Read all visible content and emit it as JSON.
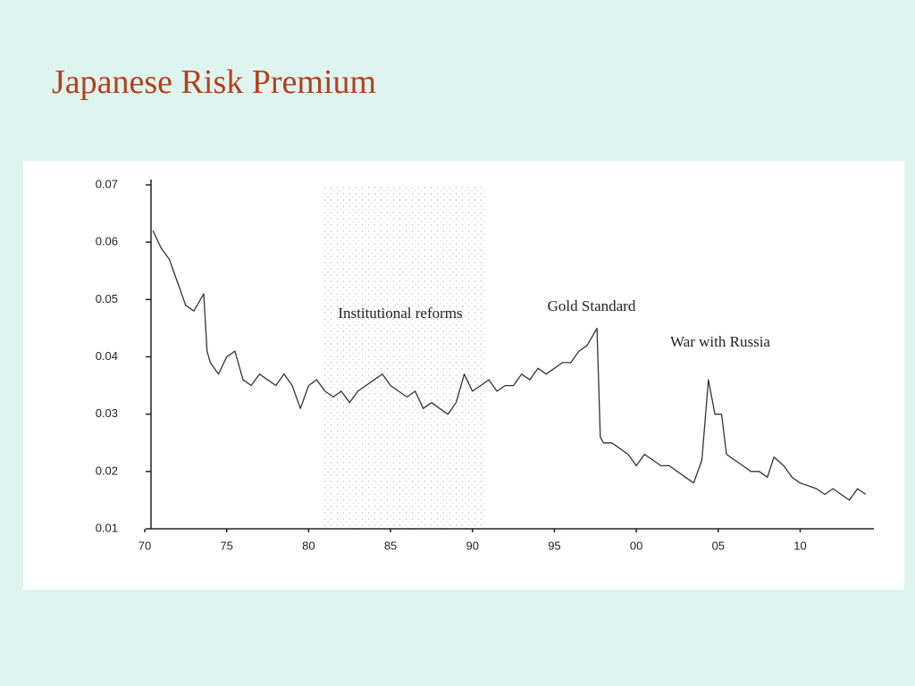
{
  "chart_data": {
    "type": "line",
    "title": "Japanese Risk Premium",
    "x": [
      1870.5,
      1871,
      1871.5,
      1872,
      1872.5,
      1873,
      1873.6,
      1873.8,
      1874,
      1874.5,
      1875,
      1875.5,
      1876,
      1876.5,
      1877,
      1877.5,
      1878,
      1878.5,
      1879,
      1879.5,
      1880,
      1880.5,
      1881,
      1881.5,
      1882,
      1882.5,
      1883,
      1883.5,
      1884,
      1884.5,
      1885,
      1885.5,
      1886,
      1886.5,
      1887,
      1887.5,
      1888,
      1888.5,
      1889,
      1889.5,
      1890,
      1890.5,
      1891,
      1891.5,
      1892,
      1892.5,
      1893,
      1893.5,
      1894,
      1894.5,
      1895,
      1895.5,
      1896,
      1896.5,
      1897,
      1897.6,
      1897.8,
      1898,
      1898.5,
      1899,
      1899.5,
      1900,
      1900.5,
      1901,
      1901.5,
      1902,
      1902.5,
      1903,
      1903.5,
      1904,
      1904.4,
      1904.8,
      1905.2,
      1905.5,
      1906,
      1906.5,
      1907,
      1907.5,
      1908,
      1908.4,
      1909,
      1909.5,
      1910,
      1910.5,
      1911,
      1911.5,
      1912,
      1912.5,
      1913,
      1913.5,
      1914
    ],
    "values": [
      0.062,
      0.059,
      0.057,
      0.053,
      0.049,
      0.048,
      0.051,
      0.041,
      0.039,
      0.037,
      0.04,
      0.041,
      0.036,
      0.035,
      0.037,
      0.036,
      0.035,
      0.037,
      0.035,
      0.031,
      0.035,
      0.036,
      0.034,
      0.033,
      0.034,
      0.032,
      0.034,
      0.035,
      0.036,
      0.037,
      0.035,
      0.034,
      0.033,
      0.034,
      0.031,
      0.032,
      0.031,
      0.03,
      0.032,
      0.037,
      0.034,
      0.035,
      0.036,
      0.034,
      0.035,
      0.035,
      0.037,
      0.036,
      0.038,
      0.037,
      0.038,
      0.039,
      0.039,
      0.041,
      0.042,
      0.045,
      0.026,
      0.025,
      0.025,
      0.024,
      0.023,
      0.021,
      0.023,
      0.022,
      0.021,
      0.021,
      0.02,
      0.019,
      0.018,
      0.022,
      0.036,
      0.03,
      0.03,
      0.023,
      0.022,
      0.021,
      0.02,
      0.02,
      0.019,
      0.0225,
      0.021,
      0.019,
      0.018,
      0.0175,
      0.017,
      0.016,
      0.017,
      0.016,
      0.015,
      0.017,
      0.016
    ],
    "color": "#333333",
    "xlim": [
      1870,
      1914.5
    ],
    "xticks": [
      {
        "value": 1870,
        "label": "70"
      },
      {
        "value": 1875,
        "label": "75"
      },
      {
        "value": 1880,
        "label": "80"
      },
      {
        "value": 1885,
        "label": "85"
      },
      {
        "value": 1890,
        "label": "90"
      },
      {
        "value": 1895,
        "label": "95"
      },
      {
        "value": 1900,
        "label": "00"
      },
      {
        "value": 1905,
        "label": "05"
      },
      {
        "value": 1910,
        "label": "10"
      }
    ],
    "ylim": [
      0.01,
      0.07
    ],
    "yticks": [
      0.01,
      0.02,
      0.03,
      0.04,
      0.05,
      0.06,
      0.07
    ],
    "shaded_span": [
      1880.8,
      1890.8
    ],
    "annotations": [
      "Institutional reforms",
      "Gold Standard",
      "War with Russia"
    ]
  }
}
